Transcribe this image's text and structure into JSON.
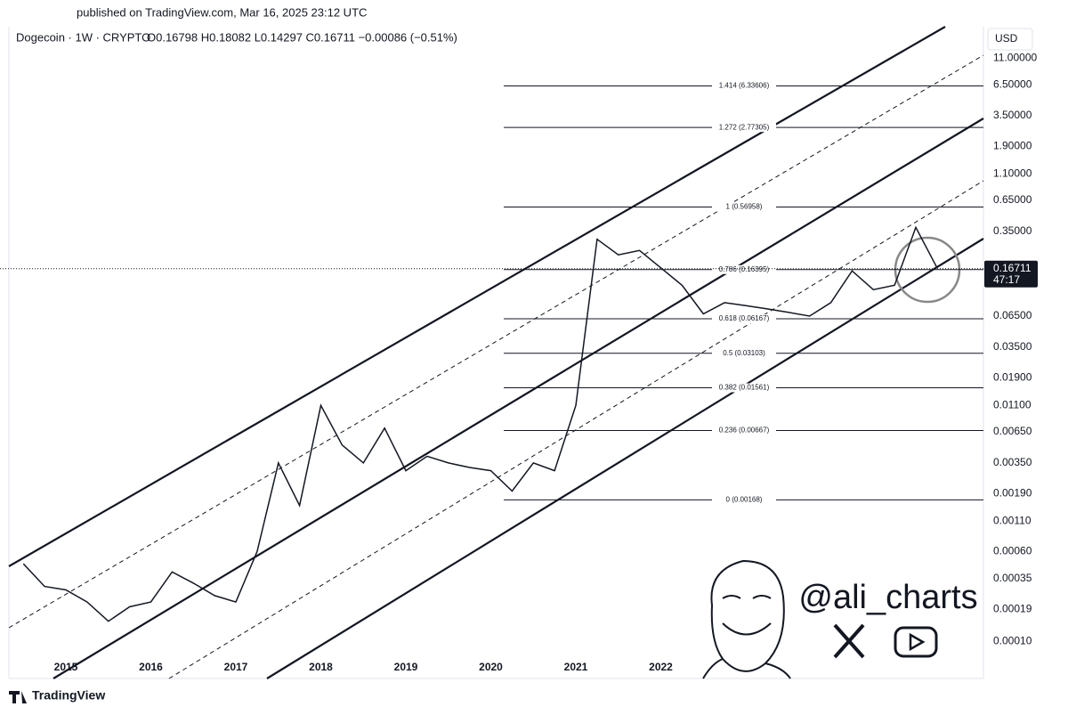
{
  "chart_data": {
    "type": "line",
    "published": "published on TradingView.com, Mar 16, 2025 23:12 UTC",
    "title": "Dogecoin · 1W · CRYPTO",
    "ohlc": "O0.16798 H0.18082 L0.14297 C0.16711 −0.00086 (−0.51%)",
    "currency": "USD",
    "log_scale": true,
    "grid": false,
    "color": "#131722",
    "categories": [
      null,
      null,
      "2015",
      null,
      null,
      null,
      "2016",
      null,
      null,
      null,
      "2017",
      null,
      null,
      null,
      "2018",
      null,
      null,
      null,
      "2019",
      null,
      null,
      null,
      "2020",
      null,
      null,
      null,
      "2021",
      null,
      null,
      null,
      "2022",
      null,
      null,
      null,
      null,
      null,
      null,
      null,
      null,
      null,
      null,
      null,
      null,
      null
    ],
    "values": [
      0.00047,
      0.0003,
      0.00028,
      0.00022,
      0.00015,
      0.0002,
      0.00022,
      0.0004,
      0.00032,
      0.00025,
      0.00022,
      0.0006,
      0.0035,
      0.0015,
      0.011,
      0.005,
      0.0035,
      0.007,
      0.003,
      0.004,
      0.0035,
      0.0032,
      0.003,
      0.002,
      0.0035,
      0.003,
      0.011,
      0.3,
      0.22,
      0.24,
      0.17,
      0.12,
      0.068,
      0.085,
      0.08,
      0.075,
      0.07,
      0.065,
      0.085,
      0.16,
      0.11,
      0.12,
      0.38,
      0.17
    ],
    "ylim": [
      4.8e-05,
      20.6
    ],
    "yticks": [
      {
        "value": 11,
        "label": "11.00000"
      },
      {
        "value": 6.5,
        "label": "6.50000"
      },
      {
        "value": 3.5,
        "label": "3.50000"
      },
      {
        "value": 1.9,
        "label": "1.90000"
      },
      {
        "value": 1.1,
        "label": "1.10000"
      },
      {
        "value": 0.65,
        "label": "0.65000"
      },
      {
        "value": 0.35,
        "label": "0.35000"
      },
      {
        "value": 0.065,
        "label": "0.06500"
      },
      {
        "value": 0.035,
        "label": "0.03500"
      },
      {
        "value": 0.019,
        "label": "0.01900"
      },
      {
        "value": 0.011,
        "label": "0.01100"
      },
      {
        "value": 0.0065,
        "label": "0.00650"
      },
      {
        "value": 0.0035,
        "label": "0.00350"
      },
      {
        "value": 0.0019,
        "label": "0.00190"
      },
      {
        "value": 0.0011,
        "label": "0.00110"
      },
      {
        "value": 0.0006,
        "label": "0.00060"
      },
      {
        "value": 0.00035,
        "label": "0.00035"
      },
      {
        "value": 0.00019,
        "label": "0.00019"
      },
      {
        "value": 0.0001,
        "label": "0.00010"
      }
    ],
    "fib_levels": [
      {
        "value": 6.33606,
        "label": "1.414 (6.33606)"
      },
      {
        "value": 2.77305,
        "label": "1.272 (2.77305)"
      },
      {
        "value": 0.56958,
        "label": "1 (0.56958)"
      },
      {
        "value": 0.16395,
        "label": "0.786 (0.16395)"
      },
      {
        "value": 0.06167,
        "label": "0.618 (0.06167)"
      },
      {
        "value": 0.03103,
        "label": "0.5 (0.03103)"
      },
      {
        "value": 0.01561,
        "label": "0.382 (0.01561)"
      },
      {
        "value": 0.00667,
        "label": "0.236 (0.00667)"
      },
      {
        "value": 0.00168,
        "label": "0 (0.00168)"
      }
    ],
    "last_price": 0.16711,
    "countdown": "47:17",
    "watermark": "@ali_charts",
    "footer": "TradingView"
  }
}
